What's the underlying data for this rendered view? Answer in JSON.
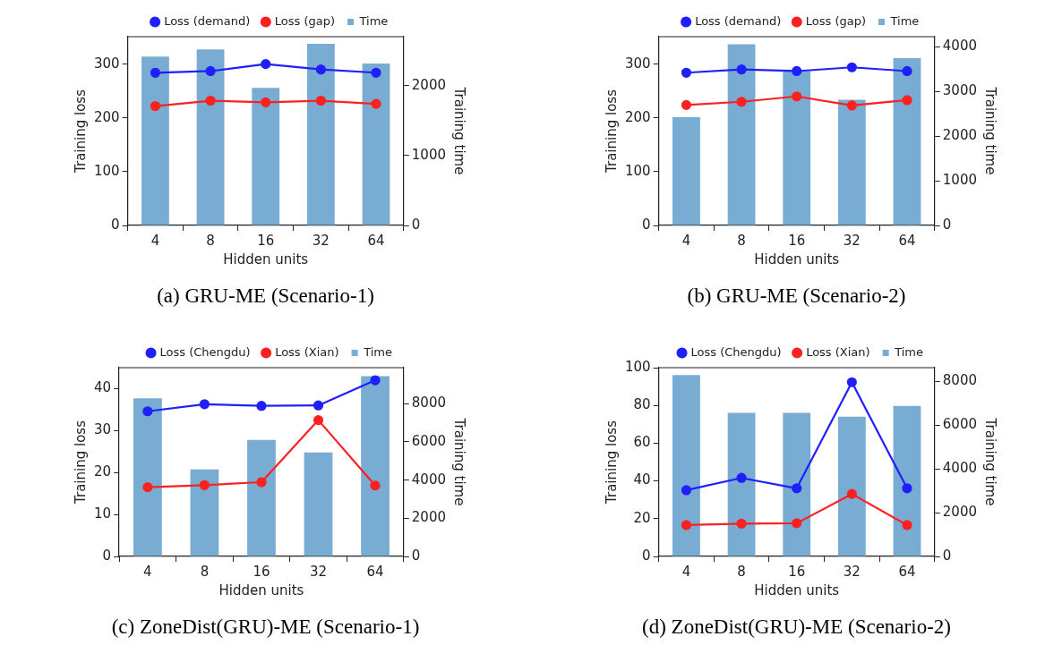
{
  "chart_data": [
    {
      "type": "bar",
      "categories": [
        "4",
        "8",
        "16",
        "32",
        "64"
      ],
      "xlabel": "Hidden units",
      "ylabel": "Training loss",
      "y2label": "Training time",
      "ylim": [
        0,
        351
      ],
      "yticks": [
        0,
        100,
        200,
        300
      ],
      "y2lim": [
        0,
        2704
      ],
      "y2ticks": [
        0,
        1000,
        2000
      ],
      "legend": "top",
      "marker": "circle",
      "annotations": [
        "(a) GRU-ME (Scenario-1)"
      ],
      "series": [
        {
          "name": "Loss (demand)",
          "type": "line",
          "color": "#1f1fff",
          "values": [
            284,
            287,
            300,
            290,
            284
          ]
        },
        {
          "name": "Loss (gap)",
          "type": "line",
          "color": "#ff2020",
          "values": [
            222,
            232,
            229,
            232,
            226
          ]
        },
        {
          "name": "Time",
          "axis": "y2",
          "color": "#78acd2",
          "values": [
            2420,
            2520,
            1970,
            2600,
            2320
          ]
        }
      ]
    },
    {
      "type": "bar",
      "categories": [
        "4",
        "8",
        "16",
        "32",
        "64"
      ],
      "xlabel": "Hidden units",
      "ylabel": "Training loss",
      "y2label": "Training time",
      "ylim": [
        0,
        351
      ],
      "yticks": [
        0,
        100,
        200,
        300
      ],
      "y2lim": [
        0,
        4222
      ],
      "y2ticks": [
        0,
        1000,
        2000,
        3000,
        4000
      ],
      "legend": "top",
      "marker": "circle",
      "annotations": [
        "(b) GRU-ME (Scenario-2)"
      ],
      "series": [
        {
          "name": "Loss (demand)",
          "type": "line",
          "color": "#1f1fff",
          "values": [
            284,
            290,
            287,
            294,
            287
          ]
        },
        {
          "name": "Loss (gap)",
          "type": "line",
          "color": "#ff2020",
          "values": [
            224,
            230,
            240,
            223,
            233
          ]
        },
        {
          "name": "Time",
          "axis": "y2",
          "color": "#78acd2",
          "values": [
            2420,
            4050,
            3450,
            2810,
            3740
          ]
        }
      ]
    },
    {
      "type": "bar",
      "categories": [
        "4",
        "8",
        "16",
        "32",
        "64"
      ],
      "xlabel": "Hidden units",
      "ylabel": "Training loss",
      "y2label": "Training time",
      "ylim": [
        0,
        45
      ],
      "yticks": [
        0,
        10,
        20,
        30,
        40
      ],
      "y2lim": [
        0,
        9890
      ],
      "y2ticks": [
        0,
        2000,
        4000,
        6000,
        8000
      ],
      "legend": "top",
      "marker": "circle",
      "annotations": [
        "(c) ZoneDist(GRU)-ME (Scenario-1)"
      ],
      "series": [
        {
          "name": "Loss (Chengdu)",
          "type": "line",
          "color": "#1f1fff",
          "values": [
            34.6,
            36.3,
            35.9,
            36.0,
            42.0
          ]
        },
        {
          "name": "Loss (Xian)",
          "type": "line",
          "color": "#ff2020",
          "values": [
            16.5,
            17.0,
            17.7,
            32.5,
            16.9
          ]
        },
        {
          "name": "Time",
          "axis": "y2",
          "color": "#78acd2",
          "values": [
            8280,
            4560,
            6100,
            5450,
            9440
          ]
        }
      ]
    },
    {
      "type": "bar",
      "categories": [
        "4",
        "8",
        "16",
        "32",
        "64"
      ],
      "xlabel": "Hidden units",
      "ylabel": "Training loss",
      "y2label": "Training time",
      "ylim": [
        0,
        100
      ],
      "yticks": [
        0,
        20,
        40,
        60,
        80,
        100
      ],
      "y2lim": [
        0,
        8627
      ],
      "y2ticks": [
        0,
        2000,
        4000,
        6000,
        8000
      ],
      "legend": "top",
      "marker": "circle",
      "annotations": [
        "(d) ZoneDist(GRU)-ME (Scenario-2)"
      ],
      "series": [
        {
          "name": "Loss (Chengdu)",
          "type": "line",
          "color": "#1f1fff",
          "values": [
            35.1,
            41.6,
            36.1,
            92.3,
            36.1
          ]
        },
        {
          "name": "Loss (Xian)",
          "type": "line",
          "color": "#ff2020",
          "values": [
            16.6,
            17.4,
            17.6,
            33.1,
            16.6
          ]
        },
        {
          "name": "Time",
          "axis": "y2",
          "color": "#78acd2",
          "values": [
            8290,
            6560,
            6560,
            6390,
            6880
          ]
        }
      ]
    }
  ]
}
